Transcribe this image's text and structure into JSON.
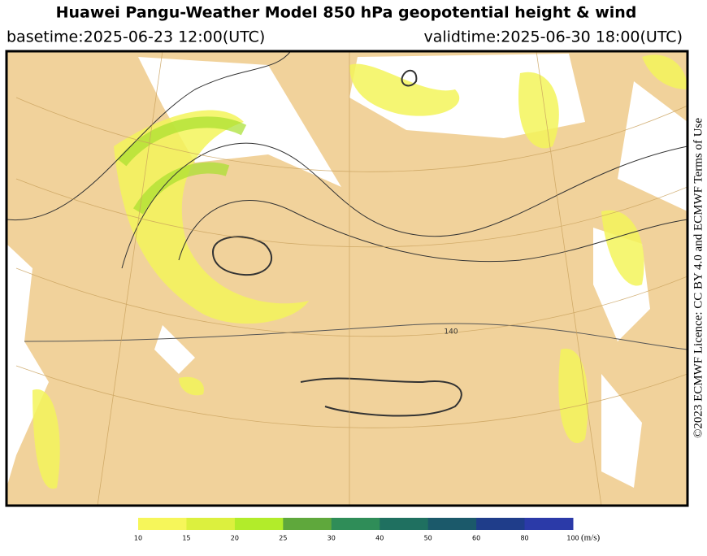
{
  "header": {
    "title": "Huawei Pangu-Weather Model 850 hPa geopotential height & wind",
    "basetime": "basetime:2025-06-23 12:00(UTC)",
    "validtime": "validtime:2025-06-30 18:00(UTC)"
  },
  "map": {
    "contour_labels": [
      "140"
    ]
  },
  "licence": "©2023 ECMWF Licence: CC BY 4.0 and ECMWF Terms of Use",
  "colorbar": {
    "ticks": [
      10,
      15,
      20,
      25,
      30,
      40,
      50,
      60,
      80,
      100
    ],
    "colors": [
      "#f6f65a",
      "#dcf03e",
      "#b2ec2a",
      "#5fa83c",
      "#2f8d58",
      "#1f7060",
      "#1b596a",
      "#1f3d8a",
      "#2b3aa8"
    ],
    "unit": "(m/s)"
  }
}
